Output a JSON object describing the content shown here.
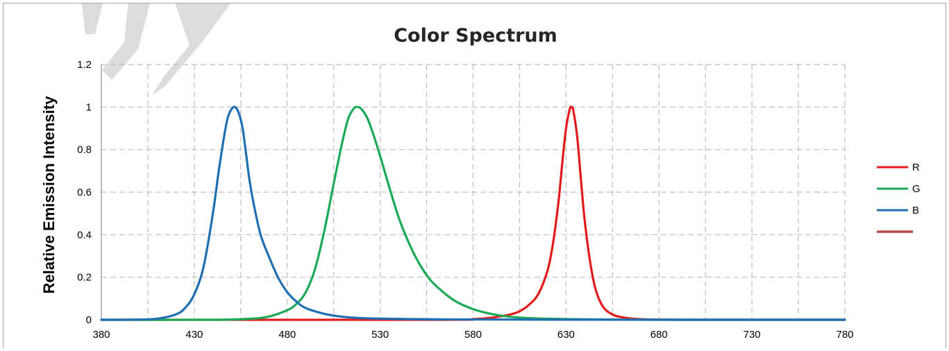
{
  "chart_data": {
    "type": "line",
    "title": "Color Spectrum",
    "xlabel": "",
    "ylabel": "Relative Emission Intensity",
    "xlim": [
      380,
      780
    ],
    "ylim": [
      0,
      1.2
    ],
    "x_ticks": [
      380,
      430,
      480,
      530,
      580,
      630,
      680,
      730,
      780
    ],
    "x_grid": [
      380,
      405,
      430,
      455,
      480,
      505,
      530,
      555,
      580,
      605,
      630,
      655,
      680,
      705,
      730,
      755,
      780
    ],
    "y_ticks": [
      0,
      0.2,
      0.4,
      0.6,
      0.8,
      1,
      1.2
    ],
    "y_tick_labels": [
      "0",
      "0.2",
      "0.4",
      "0.6",
      "0.8",
      "1",
      "1.2"
    ],
    "grid": true,
    "legend_position": "right",
    "series": [
      {
        "name": "R",
        "color": "#e31a1c",
        "x": [
          380,
          560,
          580,
          590,
          600,
          605,
          610,
          615,
          620,
          623,
          626,
          628,
          630,
          632,
          633,
          634,
          636,
          638,
          640,
          643,
          646,
          650,
          655,
          660,
          665,
          670,
          680,
          700,
          780
        ],
        "y": [
          0,
          0,
          0.003,
          0.01,
          0.025,
          0.04,
          0.07,
          0.12,
          0.23,
          0.36,
          0.56,
          0.74,
          0.9,
          0.99,
          1.0,
          0.98,
          0.86,
          0.66,
          0.47,
          0.27,
          0.14,
          0.06,
          0.025,
          0.012,
          0.006,
          0.003,
          0.001,
          0,
          0
        ]
      },
      {
        "name": "G",
        "color": "#1aaa55",
        "x": [
          380,
          440,
          460,
          470,
          480,
          485,
          490,
          495,
          500,
          505,
          510,
          513,
          516,
          518,
          520,
          523,
          526,
          530,
          535,
          540,
          545,
          550,
          555,
          560,
          570,
          580,
          590,
          600,
          610,
          620,
          640,
          660,
          680,
          780
        ],
        "y": [
          0,
          0,
          0.005,
          0.015,
          0.045,
          0.075,
          0.13,
          0.24,
          0.42,
          0.64,
          0.85,
          0.95,
          0.995,
          1.0,
          0.99,
          0.95,
          0.88,
          0.77,
          0.62,
          0.48,
          0.37,
          0.28,
          0.21,
          0.16,
          0.09,
          0.05,
          0.027,
          0.014,
          0.008,
          0.005,
          0.002,
          0.001,
          0,
          0
        ]
      },
      {
        "name": "B",
        "color": "#1f6fb4",
        "x": [
          380,
          400,
          410,
          420,
          425,
          430,
          435,
          440,
          443,
          446,
          448,
          450,
          452,
          454,
          456,
          458,
          460,
          463,
          466,
          470,
          475,
          480,
          485,
          490,
          500,
          510,
          520,
          540,
          560,
          600,
          700,
          780
        ],
        "y": [
          0,
          0.001,
          0.005,
          0.025,
          0.055,
          0.12,
          0.25,
          0.5,
          0.69,
          0.86,
          0.95,
          0.99,
          1.0,
          0.97,
          0.9,
          0.77,
          0.64,
          0.5,
          0.39,
          0.3,
          0.2,
          0.13,
          0.085,
          0.055,
          0.028,
          0.014,
          0.008,
          0.004,
          0.002,
          0.001,
          0,
          0
        ]
      }
    ],
    "extra_legend_swatch": {
      "name": "",
      "color": "#b84a4a"
    }
  }
}
